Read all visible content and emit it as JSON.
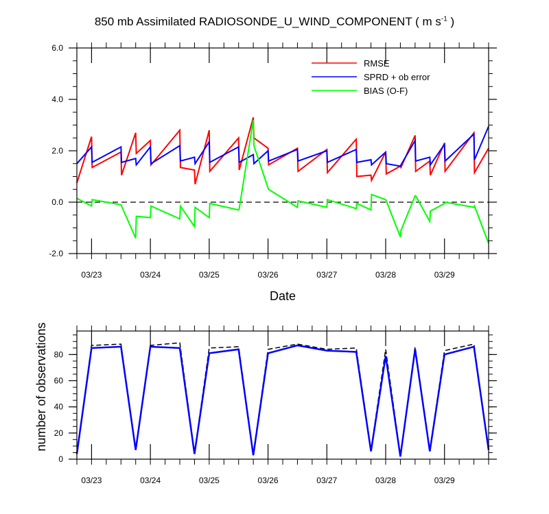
{
  "title": {
    "prefix": "850 mb Assimilated RADIOSONDE_U_WIND_COMPONENT ( m s",
    "sup": "-1",
    "suffix": " )"
  },
  "colors": {
    "rmse": "#ff0000",
    "sprd": "#0000ff",
    "bias": "#00ff00",
    "obs_used": "#0000ff",
    "obs_possible": "#000000"
  },
  "chart_data": [
    {
      "type": "line",
      "xlabel": "Date",
      "ylabel": "",
      "x_tick_labels": [
        "03/23",
        "03/24",
        "03/25",
        "03/26",
        "03/27",
        "03/28",
        "03/29"
      ],
      "x_tick_values": [
        23,
        24,
        25,
        26,
        27,
        28,
        29
      ],
      "xlim": [
        22.75,
        29.75
      ],
      "ylim": [
        -2,
        6
      ],
      "y_ticks": [
        -2,
        0,
        2,
        4,
        6
      ],
      "y_tick_labels": [
        "-2.0",
        "0.0",
        "2.0",
        "4.0",
        "6.0"
      ],
      "zero_line": true,
      "legend_position": "top-right",
      "series": [
        {
          "name": "RMSE",
          "x": [
            22.75,
            23,
            23.01,
            23.5,
            23.51,
            23.75,
            23.76,
            24,
            24.01,
            24.5,
            24.51,
            24.75,
            24.76,
            25,
            25.01,
            25.5,
            25.51,
            25.75,
            25.76,
            26,
            26.01,
            26.5,
            26.51,
            27,
            27.01,
            27.5,
            27.51,
            27.75,
            27.76,
            28,
            28.01,
            28.25,
            28.26,
            28.5,
            28.51,
            28.75,
            28.76,
            29,
            29.01,
            29.5,
            29.51,
            29.75
          ],
          "y": [
            0.75,
            2.55,
            1.35,
            1.95,
            1.05,
            2.7,
            1.9,
            2.4,
            1.45,
            2.8,
            1.35,
            1.25,
            0.7,
            2.8,
            1.2,
            2.5,
            1.25,
            3.3,
            2.5,
            2.1,
            1.45,
            2.1,
            1.2,
            2.05,
            1.15,
            2.45,
            1.0,
            1.05,
            0.85,
            1.95,
            1.1,
            1.4,
            1.35,
            2.6,
            1.2,
            1.6,
            1.05,
            2.3,
            1.2,
            2.7,
            1.15,
            2.1
          ]
        },
        {
          "name": "SPRD + ob error",
          "x": [
            22.75,
            23,
            23.01,
            23.5,
            23.51,
            23.75,
            23.76,
            24,
            24.01,
            24.5,
            24.51,
            24.75,
            24.76,
            25,
            25.01,
            25.5,
            25.51,
            25.75,
            25.76,
            26,
            26.01,
            26.5,
            26.51,
            27,
            27.01,
            27.5,
            27.51,
            27.75,
            27.76,
            28,
            28.01,
            28.25,
            28.26,
            28.5,
            28.51,
            28.75,
            28.76,
            29,
            29.01,
            29.5,
            29.51,
            29.75
          ],
          "y": [
            1.5,
            2.15,
            1.55,
            2.15,
            1.55,
            1.7,
            1.45,
            2.15,
            1.5,
            2.2,
            1.6,
            1.75,
            1.5,
            2.35,
            1.55,
            2.15,
            1.55,
            1.85,
            1.5,
            2.0,
            1.6,
            2.05,
            1.6,
            2.0,
            1.55,
            2.05,
            1.55,
            1.65,
            1.45,
            1.95,
            1.5,
            1.4,
            1.45,
            2.4,
            1.6,
            1.75,
            1.45,
            2.25,
            1.6,
            2.65,
            1.65,
            2.95
          ]
        },
        {
          "name": "BIAS (O-F)",
          "x": [
            22.75,
            23,
            23.01,
            23.5,
            23.51,
            23.75,
            23.76,
            24,
            24.01,
            24.5,
            24.51,
            24.75,
            24.76,
            25,
            25.01,
            25.5,
            25.51,
            25.75,
            25.76,
            26,
            26.01,
            26.5,
            26.51,
            27,
            27.01,
            27.5,
            27.51,
            27.75,
            27.76,
            28,
            28.01,
            28.25,
            28.26,
            28.5,
            28.51,
            28.75,
            28.76,
            29,
            29.01,
            29.5,
            29.51,
            29.75
          ],
          "y": [
            0.15,
            -0.15,
            0.1,
            -0.1,
            -0.15,
            -1.4,
            -0.55,
            -0.6,
            -0.15,
            -0.65,
            -0.15,
            -0.95,
            -0.2,
            -0.6,
            -0.05,
            -0.3,
            -0.25,
            3.2,
            2.2,
            0.55,
            0.5,
            -0.2,
            0.05,
            -0.2,
            0.1,
            -0.25,
            -0.05,
            -0.3,
            0.3,
            0.1,
            0.05,
            -1.35,
            -1.1,
            0.25,
            0.25,
            -0.75,
            -0.35,
            -0.05,
            0.0,
            -0.2,
            -0.15,
            -1.6
          ]
        }
      ]
    },
    {
      "type": "line",
      "xlabel": "",
      "ylabel": "number of observations",
      "x_tick_labels": [
        "03/23",
        "03/24",
        "03/25",
        "03/26",
        "03/27",
        "03/28",
        "03/29"
      ],
      "x_tick_values": [
        23,
        24,
        25,
        26,
        27,
        28,
        29
      ],
      "xlim": [
        22.75,
        29.75
      ],
      "ylim": [
        0,
        98
      ],
      "y_ticks": [
        0,
        20,
        40,
        60,
        80
      ],
      "y_tick_labels": [
        "0",
        "20",
        "40",
        "60",
        "80"
      ],
      "series": [
        {
          "x": [
            22.75,
            23,
            23.5,
            23.75,
            24,
            24.5,
            24.75,
            25,
            25.5,
            25.75,
            26,
            26.5,
            27,
            27.5,
            27.75,
            28,
            28.25,
            28.5,
            28.75,
            29,
            29.5,
            29.75
          ],
          "y": [
            5,
            87,
            88,
            8,
            87,
            89,
            5,
            85,
            86,
            4,
            84,
            88,
            84,
            85,
            7,
            84,
            3,
            86,
            7,
            83,
            88,
            8
          ]
        },
        {
          "x": [
            22.75,
            23,
            23.5,
            23.75,
            24,
            24.5,
            24.75,
            25,
            25.5,
            25.75,
            26,
            26.5,
            27,
            27.5,
            27.75,
            28,
            28.25,
            28.5,
            28.75,
            29,
            29.5,
            29.75
          ],
          "y": [
            4,
            85,
            86,
            7,
            86,
            85,
            4,
            81,
            84,
            3,
            81,
            87,
            83,
            82,
            6,
            79,
            2,
            84,
            6,
            80,
            86,
            7
          ]
        }
      ]
    }
  ]
}
